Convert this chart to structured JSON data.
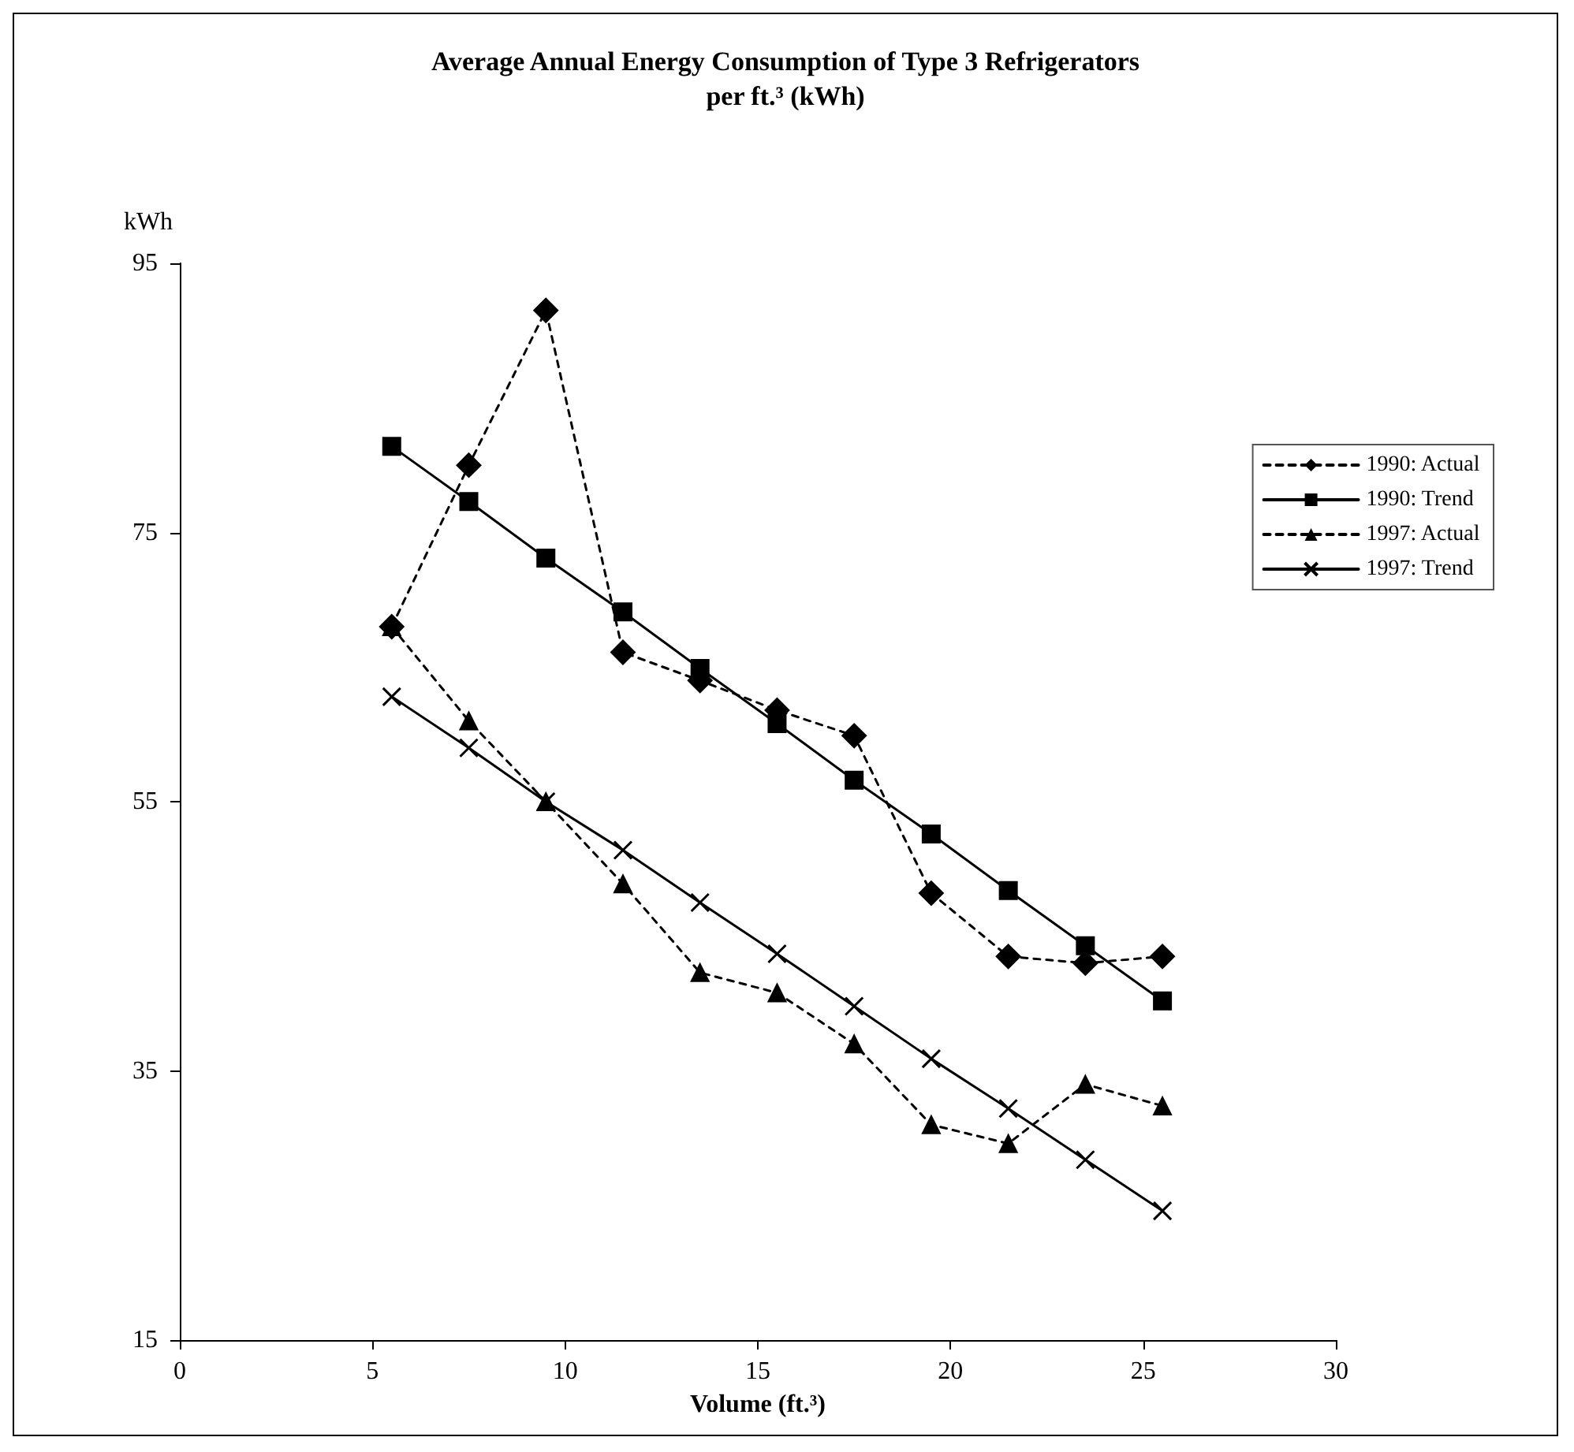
{
  "chart_data": {
    "type": "line",
    "title": "Average Annual Energy Consumption of Type 3 Refrigerators\nper ft.³ (kWh)",
    "xlabel": "Volume (ft.³)",
    "ylabel": "kWh",
    "x": [
      5.5,
      7.5,
      9.5,
      11.5,
      13.5,
      15.5,
      17.5,
      19.5,
      21.5,
      23.5,
      25.5
    ],
    "series": [
      {
        "name": "1990: Actual",
        "color": "#000000",
        "marker": "diamond",
        "line_style": "dashed",
        "values": [
          68.0,
          80.0,
          91.5,
          66.1,
          64.0,
          61.8,
          59.9,
          48.2,
          43.5,
          43.0,
          43.5
        ]
      },
      {
        "name": "1990: Trend",
        "color": "#000000",
        "marker": "square",
        "line_style": "solid",
        "values": [
          81.4,
          77.3,
          73.1,
          69.1,
          64.9,
          60.8,
          56.6,
          52.6,
          48.4,
          44.3,
          40.2
        ]
      },
      {
        "name": "1997: Actual",
        "color": "#000000",
        "marker": "triangle",
        "line_style": "dashed",
        "values": [
          68.0,
          61.0,
          55.0,
          48.9,
          42.3,
          40.8,
          37.0,
          31.0,
          29.6,
          34.0,
          32.4
        ]
      },
      {
        "name": "1997: Trend",
        "color": "#000000",
        "marker": "cross",
        "line_style": "solid",
        "values": [
          62.8,
          59.0,
          55.0,
          51.4,
          47.5,
          43.7,
          39.8,
          35.9,
          32.2,
          28.4,
          24.6
        ]
      }
    ],
    "xlim": [
      0,
      30
    ],
    "xticks": [
      0,
      5,
      10,
      15,
      20,
      25,
      30
    ],
    "ylim": [
      15,
      95
    ],
    "yticks": [
      15,
      35,
      55,
      75,
      95
    ],
    "grid": false,
    "legend": "right"
  }
}
